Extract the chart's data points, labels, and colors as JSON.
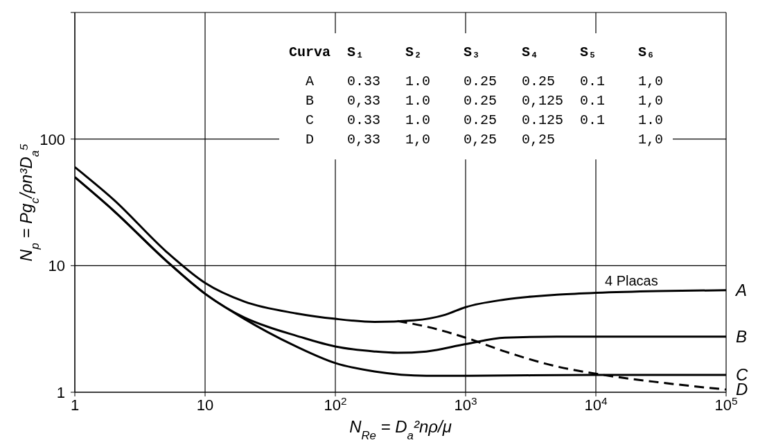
{
  "chart_data": {
    "type": "line",
    "xlabel": "N$_{Re}$ = D$_{a}$²nρ/μ",
    "ylabel": "N$_{p}$ = Pg$_{c}$/ρn³D$_{a}$⁵",
    "log": "xy",
    "grid": true,
    "legend": false,
    "marker": "none",
    "xlim": [
      1,
      100000
    ],
    "xticks": [
      1,
      10,
      {
        "value": 100,
        "label": "10$^{2}$"
      },
      {
        "value": 1000,
        "label": "10$^{3}$"
      },
      {
        "value": 10000,
        "label": "10$^{4}$"
      },
      {
        "value": 100000,
        "label": "10$^{5}$"
      }
    ],
    "ylim": [
      1,
      1000
    ],
    "yticks": [
      1,
      10,
      100,
      {
        "value": 1000,
        "label": null
      }
    ],
    "series": [
      {
        "name": "A",
        "color": "#000000",
        "line_style": "solid",
        "x": [
          1,
          2,
          5,
          10,
          20,
          50,
          100,
          200,
          400,
          700,
          1000,
          2000,
          5000,
          10000,
          30000,
          100000
        ],
        "values": [
          60,
          33,
          13,
          7.3,
          5.2,
          4.2,
          3.8,
          3.6,
          3.7,
          4.1,
          4.7,
          5.4,
          5.9,
          6.1,
          6.3,
          6.4
        ]
      },
      {
        "name": "B",
        "color": "#000000",
        "line_style": "solid",
        "x": [
          1,
          2,
          5,
          10,
          20,
          30,
          50,
          100,
          200,
          300,
          500,
          1000,
          2000,
          5000,
          10000,
          100000
        ],
        "values": [
          50,
          27,
          11,
          6,
          3.9,
          3.3,
          2.8,
          2.3,
          2.1,
          2.05,
          2.1,
          2.4,
          2.7,
          2.75,
          2.75,
          2.75
        ]
      },
      {
        "name": "C",
        "color": "#000000",
        "line_style": "solid",
        "x": [
          1,
          2,
          5,
          10,
          20,
          30,
          50,
          100,
          200,
          500,
          1000,
          10000,
          100000
        ],
        "values": [
          50,
          27,
          11,
          6,
          3.8,
          3.0,
          2.3,
          1.7,
          1.46,
          1.35,
          1.35,
          1.37,
          1.37
        ]
      },
      {
        "name": "D",
        "color": "#000000",
        "line_style": "dashed",
        "x": [
          300,
          500,
          1000,
          2000,
          5000,
          10000,
          30000,
          100000
        ],
        "values": [
          3.65,
          3.3,
          2.7,
          2.1,
          1.6,
          1.4,
          1.2,
          1.05
        ]
      }
    ],
    "annotations": [
      "4 Placas",
      "Curva  S₁     S₂     S₃     S₄     S₅     S₆",
      "  A    0.33   1.0    0.25   0.25   0.1    1,0",
      "  B    0,33   1.0    0.25   0,125  0.1    1,0",
      "  C    0.33   1.0    0.25   0.125  0.1    1.0",
      "  D    0,33   1,0    0,25   0,25          1,0"
    ]
  }
}
